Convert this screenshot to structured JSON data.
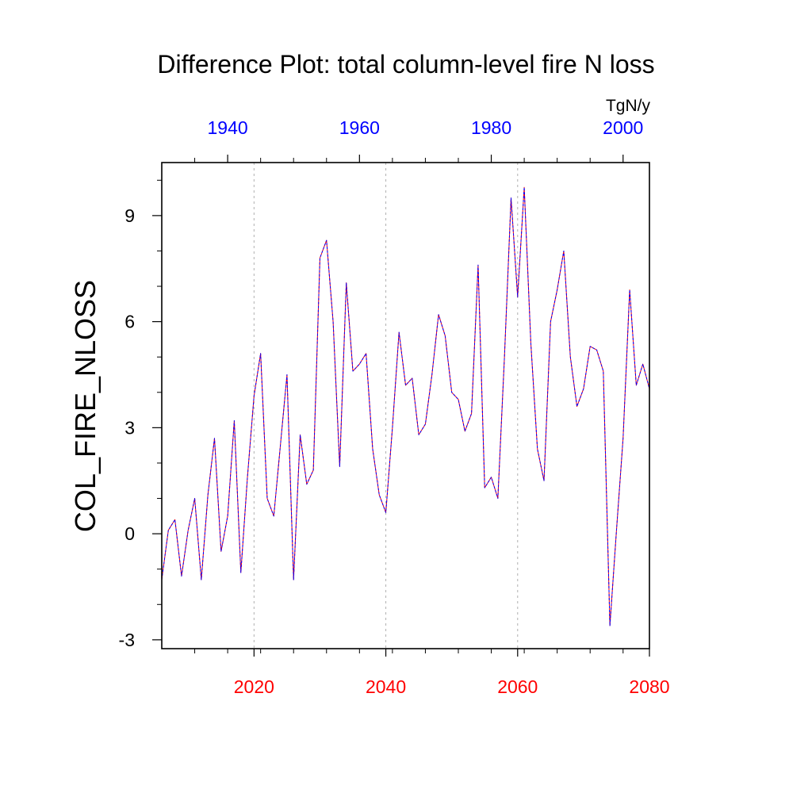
{
  "chart_data": {
    "type": "line",
    "title": "Difference Plot: total column-level fire N loss",
    "units": "TgN/y",
    "ylabel": "COL_FIRE_NLOSS",
    "ylim": [
      -3.25,
      10.5
    ],
    "yticks": [
      -3,
      0,
      3,
      6,
      9
    ],
    "yticks_labels": [
      "-3",
      "0",
      "3",
      "6",
      "9"
    ],
    "x_bottom": {
      "range": [
        2006,
        2080
      ],
      "ticks": [
        2020,
        2040,
        2060,
        2080
      ],
      "tick_labels": [
        "2020",
        "2040",
        "2060",
        "2080"
      ],
      "color": "#ff0000"
    },
    "x_top": {
      "range": [
        1930,
        2004
      ],
      "ticks": [
        1940,
        1960,
        1980,
        2000
      ],
      "tick_labels": [
        "1940",
        "1960",
        "1980",
        "2000"
      ],
      "color": "#0000ff"
    },
    "grid": "dotted vertical at major bottom ticks",
    "series": [
      {
        "color_primary": "#ff0000",
        "color_secondary": "#0000ff",
        "style": "dashed overlay",
        "x": [
          2006,
          2007,
          2008,
          2009,
          2010,
          2011,
          2012,
          2013,
          2014,
          2015,
          2016,
          2017,
          2018,
          2019,
          2020,
          2021,
          2022,
          2023,
          2024,
          2025,
          2026,
          2027,
          2028,
          2029,
          2030,
          2031,
          2032,
          2033,
          2034,
          2035,
          2036,
          2037,
          2038,
          2039,
          2040,
          2041,
          2042,
          2043,
          2044,
          2045,
          2046,
          2047,
          2048,
          2049,
          2050,
          2051,
          2052,
          2053,
          2054,
          2055,
          2056,
          2057,
          2058,
          2059,
          2060,
          2061,
          2062,
          2063,
          2064,
          2065,
          2066,
          2067,
          2068,
          2069,
          2070,
          2071,
          2072,
          2073,
          2074,
          2075,
          2076,
          2077,
          2078,
          2079,
          2080
        ],
        "values": [
          -1.3,
          0.1,
          0.4,
          -1.2,
          0.1,
          1.0,
          -1.3,
          1.1,
          2.7,
          -0.5,
          0.5,
          3.2,
          -1.1,
          1.6,
          3.9,
          5.1,
          1.0,
          0.5,
          2.5,
          4.5,
          -1.3,
          2.8,
          1.4,
          1.8,
          7.8,
          8.3,
          6.0,
          1.9,
          7.1,
          4.6,
          4.8,
          5.1,
          2.4,
          1.1,
          0.6,
          3.0,
          5.7,
          4.2,
          4.4,
          2.8,
          3.1,
          4.5,
          6.2,
          5.6,
          4.0,
          3.8,
          2.9,
          3.4,
          7.6,
          1.3,
          1.6,
          1.0,
          5.0,
          9.5,
          6.7,
          9.8,
          5.4,
          2.4,
          1.5,
          6.0,
          6.9,
          8.0,
          5.0,
          3.6,
          4.1,
          5.3,
          5.2,
          4.6,
          -2.6,
          0.1,
          2.7,
          6.9,
          4.2,
          4.8,
          4.1
        ]
      }
    ]
  }
}
